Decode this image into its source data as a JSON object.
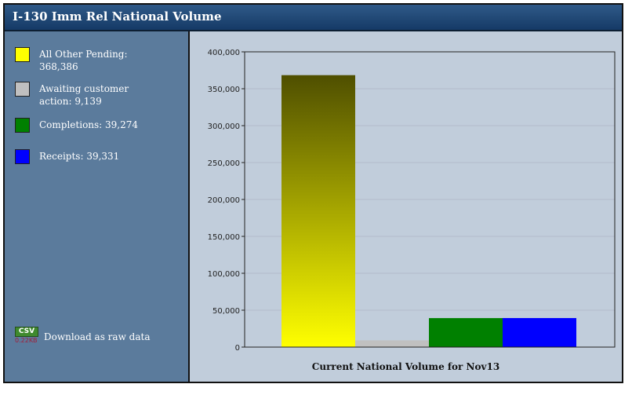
{
  "title": "I-130 Imm Rel National Volume",
  "legend": {
    "items": [
      {
        "label": "All Other Pending: 368,386",
        "color": "#ffff00"
      },
      {
        "label": "Awaiting customer action: 9,139",
        "color": "#c0c0c0"
      },
      {
        "label": "Completions: 39,274",
        "color": "#008000"
      },
      {
        "label": "Receipts: 39,331",
        "color": "#0000ff"
      }
    ]
  },
  "download": {
    "badge": "CSV",
    "size": "0.22KB",
    "label": "Download as raw data"
  },
  "chart_data": {
    "type": "bar",
    "title": "",
    "xlabel": "Current National Volume for Nov13",
    "ylabel": "",
    "ylim": [
      0,
      400000
    ],
    "yticks": [
      0,
      50000,
      100000,
      150000,
      200000,
      250000,
      300000,
      350000,
      400000
    ],
    "ytick_labels": [
      "0",
      "50,000",
      "100,000",
      "150,000",
      "200,000",
      "250,000",
      "300,000",
      "350,000",
      "400,000"
    ],
    "grid": true,
    "series": [
      {
        "name": "All Other Pending",
        "values": [
          368386
        ],
        "color": "#ffff00",
        "gradient_top": "#4f4f00"
      },
      {
        "name": "Awaiting customer action",
        "values": [
          9139
        ],
        "color": "#c0c0c0"
      },
      {
        "name": "Completions",
        "values": [
          39274
        ],
        "color": "#008000"
      },
      {
        "name": "Receipts",
        "values": [
          39331
        ],
        "color": "#0000ff"
      }
    ]
  }
}
